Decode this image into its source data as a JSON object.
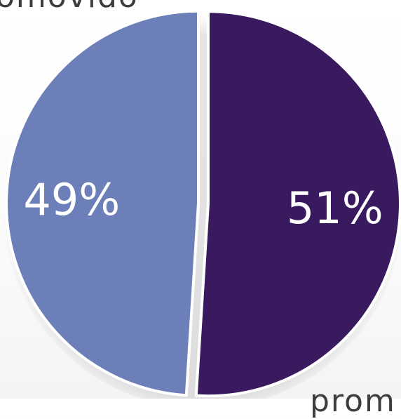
{
  "chart_data": {
    "type": "pie",
    "categories": [
      "",
      ""
    ],
    "values": [
      49,
      51
    ],
    "data_labels": [
      "49%",
      "51%"
    ],
    "colors": [
      "#6d7fb9",
      "#3a1a5e"
    ],
    "label_color": "#ffffff",
    "title": "",
    "legend": "none"
  },
  "labels": {
    "top_partial": "omovido",
    "bottom_partial": "prom"
  }
}
